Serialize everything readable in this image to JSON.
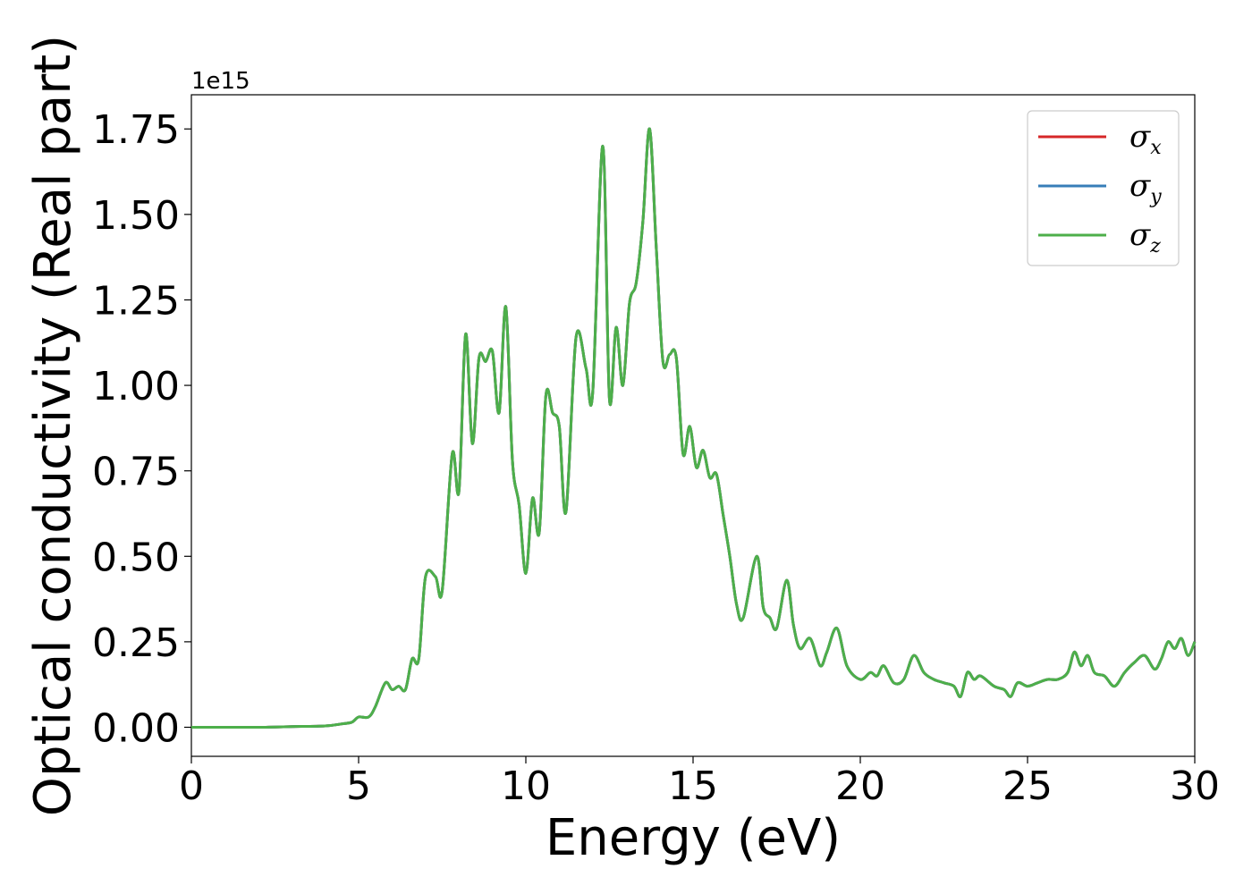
{
  "chart_data": {
    "type": "line",
    "title": "",
    "xlabel": "Energy (eV)",
    "ylabel": "Optical conductivity (Real part)",
    "y_offset_label": "1e15",
    "xlim": [
      0,
      30
    ],
    "ylim": [
      -0.085,
      1.85
    ],
    "x_ticks": [
      0,
      5,
      10,
      15,
      20,
      25,
      30
    ],
    "x_tick_labels": [
      "0",
      "5",
      "10",
      "15",
      "20",
      "25",
      "30"
    ],
    "y_ticks": [
      0,
      0.25,
      0.5,
      0.75,
      1.0,
      1.25,
      1.5,
      1.75
    ],
    "y_tick_labels": [
      "0.00",
      "0.25",
      "0.50",
      "0.75",
      "1.00",
      "1.25",
      "1.50",
      "1.75"
    ],
    "grid": false,
    "legend_position": "top-right",
    "series": [
      {
        "name": "σ_x",
        "symbol": "σ",
        "subscript": "x",
        "color": "#d62728"
      },
      {
        "name": "σ_y",
        "symbol": "σ",
        "subscript": "y",
        "color": "#377eb8"
      },
      {
        "name": "σ_z",
        "symbol": "σ",
        "subscript": "z",
        "color": "#4daf4a"
      }
    ],
    "x": [
      0,
      1,
      2,
      3,
      4,
      4.5,
      4.8,
      5.0,
      5.3,
      5.5,
      5.8,
      6.0,
      6.2,
      6.4,
      6.6,
      6.8,
      7.0,
      7.3,
      7.5,
      7.8,
      8.0,
      8.2,
      8.4,
      8.6,
      8.8,
      9.0,
      9.2,
      9.4,
      9.6,
      9.8,
      10.0,
      10.2,
      10.4,
      10.6,
      10.8,
      11.0,
      11.2,
      11.5,
      11.8,
      12.0,
      12.3,
      12.5,
      12.7,
      12.9,
      13.1,
      13.3,
      13.5,
      13.7,
      13.9,
      14.1,
      14.3,
      14.5,
      14.7,
      14.9,
      15.1,
      15.3,
      15.5,
      15.7,
      15.9,
      16.1,
      16.3,
      16.5,
      16.9,
      17.1,
      17.3,
      17.5,
      17.8,
      18.0,
      18.2,
      18.5,
      18.8,
      19.0,
      19.3,
      19.6,
      20.0,
      20.3,
      20.5,
      20.7,
      21.0,
      21.3,
      21.6,
      21.9,
      22.2,
      22.5,
      22.8,
      23.0,
      23.2,
      23.4,
      23.6,
      24.0,
      24.3,
      24.5,
      24.7,
      25.0,
      25.3,
      25.6,
      25.9,
      26.2,
      26.4,
      26.6,
      26.8,
      27.0,
      27.3,
      27.6,
      27.9,
      28.2,
      28.5,
      28.8,
      29.0,
      29.2,
      29.4,
      29.6,
      29.8,
      30.0
    ],
    "values": [
      0,
      0.0,
      0.0,
      0.002,
      0.004,
      0.01,
      0.015,
      0.03,
      0.03,
      0.06,
      0.13,
      0.11,
      0.12,
      0.11,
      0.2,
      0.2,
      0.44,
      0.44,
      0.4,
      0.8,
      0.69,
      1.15,
      0.83,
      1.08,
      1.07,
      1.1,
      0.92,
      1.23,
      0.78,
      0.65,
      0.45,
      0.67,
      0.57,
      0.97,
      0.92,
      0.88,
      0.63,
      1.14,
      1.05,
      0.98,
      1.7,
      0.96,
      1.17,
      1.0,
      1.24,
      1.3,
      1.48,
      1.75,
      1.4,
      1.07,
      1.09,
      1.08,
      0.8,
      0.88,
      0.76,
      0.81,
      0.73,
      0.74,
      0.62,
      0.5,
      0.36,
      0.32,
      0.5,
      0.35,
      0.32,
      0.29,
      0.43,
      0.3,
      0.23,
      0.26,
      0.18,
      0.22,
      0.29,
      0.18,
      0.14,
      0.16,
      0.15,
      0.18,
      0.13,
      0.14,
      0.21,
      0.16,
      0.14,
      0.13,
      0.12,
      0.09,
      0.16,
      0.14,
      0.15,
      0.12,
      0.11,
      0.09,
      0.13,
      0.12,
      0.13,
      0.14,
      0.14,
      0.16,
      0.22,
      0.18,
      0.21,
      0.16,
      0.15,
      0.12,
      0.16,
      0.19,
      0.21,
      0.17,
      0.2,
      0.25,
      0.23,
      0.26,
      0.21,
      0.25
    ]
  }
}
